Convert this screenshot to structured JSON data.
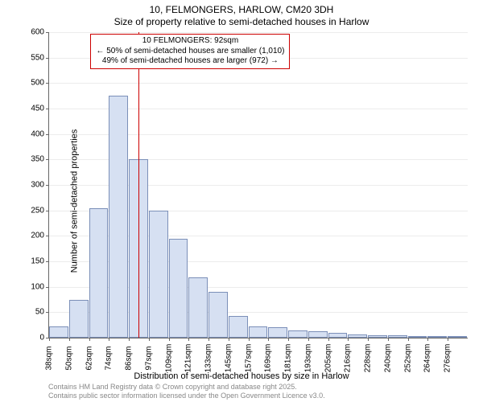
{
  "title_main": "10, FELMONGERS, HARLOW, CM20 3DH",
  "title_sub": "Size of property relative to semi-detached houses in Harlow",
  "y_label": "Number of semi-detached properties",
  "x_label": "Distribution of semi-detached houses by size in Harlow",
  "chart": {
    "type": "histogram",
    "background_color": "#ffffff",
    "grid_color": "#666666",
    "grid_opacity": 0.12,
    "bar_fill": "#d6e0f2",
    "bar_border": "#7b8fb8",
    "ylim": [
      0,
      600
    ],
    "y_ticks": [
      0,
      50,
      100,
      150,
      200,
      250,
      300,
      350,
      400,
      450,
      500,
      550,
      600
    ],
    "x_ticks": [
      38,
      50,
      62,
      74,
      86,
      97,
      109,
      121,
      133,
      145,
      157,
      169,
      181,
      193,
      205,
      216,
      228,
      240,
      252,
      264,
      276
    ],
    "x_unit": "sqm",
    "values": [
      22,
      75,
      255,
      475,
      350,
      250,
      195,
      118,
      90,
      42,
      22,
      20,
      15,
      12,
      10,
      7,
      5,
      5,
      3,
      3,
      2
    ],
    "marker": {
      "position_index": 4.5,
      "color": "#cc0000"
    },
    "annotation": {
      "border_color": "#cc0000",
      "lines": [
        "10 FELMONGERS: 92sqm",
        "← 50% of semi-detached houses are smaller (1,010)",
        "49% of semi-detached houses are larger (972) →"
      ]
    }
  },
  "footer": {
    "line1": "Contains HM Land Registry data © Crown copyright and database right 2025.",
    "line2": "Contains public sector information licensed under the Open Government Licence v3.0."
  }
}
